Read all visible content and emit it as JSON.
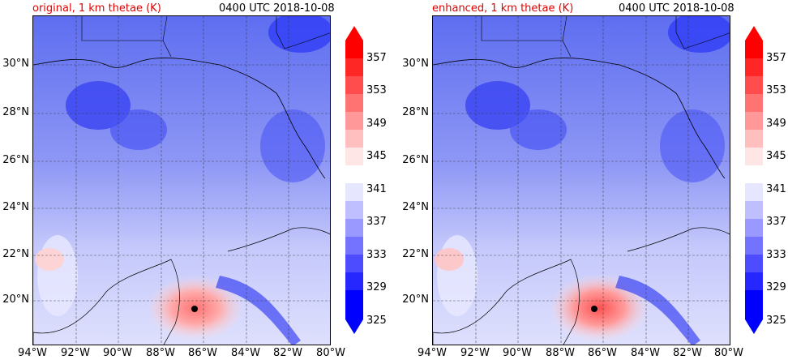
{
  "panels": [
    {
      "title": "original, 1 km thetae (K)",
      "time": "0400 UTC 2018-10-08"
    },
    {
      "title": "enhanced, 1 km thetae (K)",
      "time": "0400 UTC 2018-10-08"
    }
  ],
  "lat_labels": [
    "30°N",
    "28°N",
    "26°N",
    "24°N",
    "22°N",
    "20°N"
  ],
  "lon_labels": [
    "94°W",
    "92°W",
    "90°W",
    "88°W",
    "86°W",
    "84°W",
    "82°W",
    "80°W"
  ],
  "colorbar": {
    "ticks": [
      "357",
      "353",
      "349",
      "345",
      "341",
      "337",
      "333",
      "329",
      "325"
    ],
    "colors": [
      "#ff0000",
      "#ff2626",
      "#ff4d4d",
      "#ff7373",
      "#ff9999",
      "#ffbfbf",
      "#ffe6e6",
      "#e6e6ff",
      "#bfbfff",
      "#9999ff",
      "#7373ff",
      "#4d4dff",
      "#2626ff",
      "#0000ff"
    ]
  },
  "marker": "storm center dot"
}
